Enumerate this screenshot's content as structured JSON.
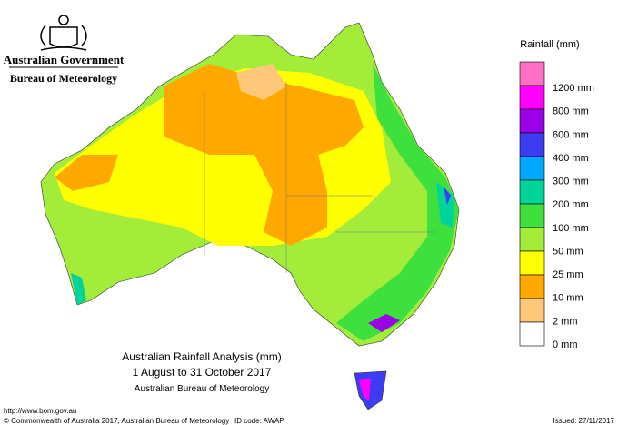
{
  "header": {
    "government": "Australian Government",
    "bureau": "Bureau of Meteorology"
  },
  "legend": {
    "title": "Rainfall (mm)",
    "colors": [
      "#ff6fc4",
      "#ff00ff",
      "#9b00e6",
      "#3c3cf0",
      "#00a8ff",
      "#00d49a",
      "#3ee03e",
      "#a4ec3a",
      "#ffff00",
      "#ffa800",
      "#ffc77a",
      "#ffffff"
    ],
    "labels": [
      "1200 mm",
      "800 mm",
      "600 mm",
      "400 mm",
      "300 mm",
      "200 mm",
      "100 mm",
      "50 mm",
      "25 mm",
      "10 mm",
      "2 mm",
      "0 mm"
    ]
  },
  "caption": {
    "title": "Australian Rainfall Analysis (mm)",
    "period": "1 August to 31 October 2017",
    "source": "Australian Bureau of Meteorology"
  },
  "footer": {
    "url": "http://www.bom.gov.au",
    "copyright": "© Commonwealth of Australia 2017, Australian Bureau of Meteorology",
    "id_code": "ID code: AWAP",
    "issued": "Issued: 27/11/2017"
  }
}
